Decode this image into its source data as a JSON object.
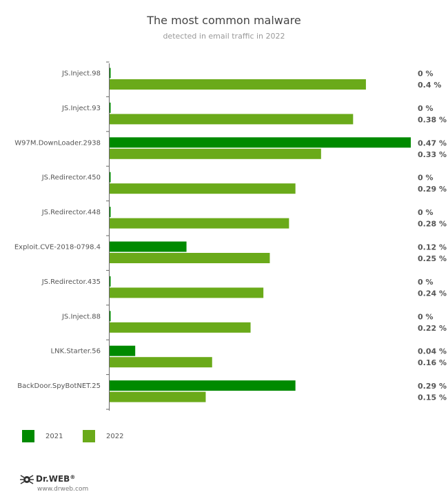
{
  "title": "The most common malware",
  "subtitle": "detected in email traffic in 2022",
  "colors": {
    "y2021": "#008a00",
    "y2022": "#6aaa1a"
  },
  "legend": [
    {
      "label": "2021",
      "color": "#008a00"
    },
    {
      "label": "2022",
      "color": "#6aaa1a"
    }
  ],
  "brand": {
    "name": "Dr.WEB",
    "registered": "®",
    "url": "www.drweb.com",
    "icon": "drweb-spider-logo-icon"
  },
  "chart_data": {
    "type": "bar",
    "orientation": "horizontal",
    "title": "The most common malware",
    "subtitle": "detected in email traffic in 2022",
    "categories": [
      "JS.Inject.98",
      "JS.Inject.93",
      "W97M.DownLoader.2938",
      "JS.Redirector.450",
      "JS.Redirector.448",
      "Exploit.CVE-2018-0798.4",
      "JS.Redirector.435",
      "JS.Inject.88",
      "LNK.Starter.56",
      "BackDoor.SpyBotNET.25"
    ],
    "series": [
      {
        "name": "2021",
        "values": [
          0,
          0,
          0.47,
          0,
          0,
          0.12,
          0,
          0,
          0.04,
          0.29
        ],
        "labels": [
          "0 %",
          "0 %",
          "0.47 %",
          "0 %",
          "0 %",
          "0.12 %",
          "0 %",
          "0 %",
          "0.04 %",
          "0.29 %"
        ]
      },
      {
        "name": "2022",
        "values": [
          0.4,
          0.38,
          0.33,
          0.29,
          0.28,
          0.25,
          0.24,
          0.22,
          0.16,
          0.15
        ],
        "labels": [
          "0.4 %",
          "0.38 %",
          "0.33 %",
          "0.29 %",
          "0.28 %",
          "0.25 %",
          "0.24 %",
          "0.22 %",
          "0.16 %",
          "0.15 %"
        ]
      }
    ],
    "xlim": [
      0,
      0.47
    ],
    "grid": false,
    "legend_position": "bottom-left"
  }
}
